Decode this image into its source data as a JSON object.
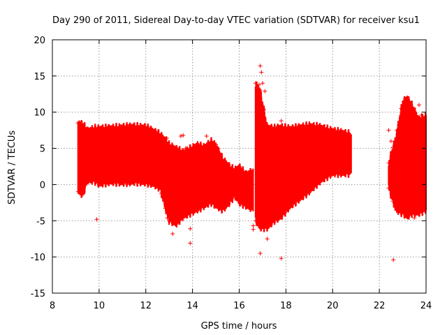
{
  "chart_data": {
    "type": "scatter",
    "title": "Day 290 of 2011, Sidereal Day-to-day VTEC variation (SDTVAR) for receiver ksu1",
    "xlabel": "GPS time / hours",
    "ylabel": "SDTVAR / TECUs",
    "xlim": [
      8,
      24
    ],
    "ylim": [
      -15,
      20
    ],
    "xticks": [
      "8",
      "10",
      "12",
      "14",
      "16",
      "18",
      "20",
      "22",
      "24"
    ],
    "yticks": [
      "-15",
      "-10",
      "-5",
      "0",
      "5",
      "10",
      "15",
      "20"
    ],
    "grid": true,
    "marker": "+",
    "color": "#ff0000",
    "series": [
      {
        "name": "SDTVAR",
        "segments": [
          {
            "x": [
              9.1,
              9.3,
              9.5,
              9.8,
              10.0,
              10.5,
              11.0,
              11.5,
              12.0,
              12.3
            ],
            "top": [
              8.5,
              8.4,
              7.5,
              7.8,
              7.8,
              7.9,
              8.0,
              8.1,
              8.0,
              7.5
            ],
            "bottom": [
              -1.0,
              -1.5,
              0.5,
              0.5,
              0.0,
              0.3,
              0.2,
              0.3,
              0.2,
              0.0
            ]
          },
          {
            "x": [
              12.3,
              12.6,
              12.9,
              13.0,
              13.3,
              13.6,
              13.9,
              14.2,
              14.5,
              14.8,
              15.0
            ],
            "top": [
              7.5,
              7.0,
              6.0,
              5.5,
              5.0,
              4.5,
              5.0,
              5.5,
              5.2,
              6.0,
              5.5
            ],
            "bottom": [
              0.0,
              -0.5,
              -4.0,
              -5.0,
              -5.5,
              -4.5,
              -4.0,
              -3.5,
              -3.0,
              -2.5,
              -3.0
            ]
          },
          {
            "x": [
              15.0,
              15.3,
              15.6,
              15.8,
              16.0,
              16.3,
              16.6
            ],
            "top": [
              5.5,
              3.5,
              2.5,
              2.0,
              2.5,
              1.5,
              2.0
            ],
            "bottom": [
              -3.0,
              -3.5,
              -2.5,
              -1.5,
              -2.5,
              -3.0,
              -3.5
            ]
          },
          {
            "x": [
              16.7,
              16.9,
              17.2,
              17.5,
              17.8,
              18.2,
              18.6,
              19.0,
              19.5,
              20.0,
              20.5,
              20.8
            ],
            "top": [
              14.0,
              13.0,
              8.0,
              7.8,
              8.0,
              7.8,
              8.0,
              8.2,
              8.0,
              7.5,
              7.2,
              7.0
            ],
            "bottom": [
              -5.0,
              -6.0,
              -6.0,
              -5.0,
              -4.5,
              -3.0,
              -2.0,
              -1.0,
              0.5,
              1.5,
              1.5,
              1.5
            ]
          },
          {
            "x": [
              22.4,
              22.7,
              23.0,
              23.2,
              23.4,
              23.7,
              24.0
            ],
            "top": [
              3.0,
              6.5,
              11.5,
              12.0,
              11.0,
              9.0,
              9.5
            ],
            "bottom": [
              -0.5,
              -3.5,
              -4.0,
              -4.5,
              -4.0,
              -4.0,
              -3.5
            ]
          }
        ],
        "outliers": [
          {
            "x": 9.9,
            "y": -4.8
          },
          {
            "x": 9.15,
            "y": 8.6
          },
          {
            "x": 12.92,
            "y": -4.6
          },
          {
            "x": 13.15,
            "y": -6.8
          },
          {
            "x": 13.5,
            "y": 6.7
          },
          {
            "x": 13.9,
            "y": -6.1
          },
          {
            "x": 13.9,
            "y": -8.1
          },
          {
            "x": 13.6,
            "y": 6.8
          },
          {
            "x": 13.7,
            "y": 5.0
          },
          {
            "x": 12.9,
            "y": 6.4
          },
          {
            "x": 14.6,
            "y": 6.7
          },
          {
            "x": 16.9,
            "y": 16.4
          },
          {
            "x": 16.95,
            "y": 15.5
          },
          {
            "x": 16.85,
            "y": 13.8
          },
          {
            "x": 17.0,
            "y": 14.0
          },
          {
            "x": 17.1,
            "y": 12.9
          },
          {
            "x": 16.6,
            "y": -5.7
          },
          {
            "x": 16.6,
            "y": -6.2
          },
          {
            "x": 16.9,
            "y": -9.5
          },
          {
            "x": 17.2,
            "y": -7.5
          },
          {
            "x": 17.8,
            "y": -10.2
          },
          {
            "x": 17.8,
            "y": 8.8
          },
          {
            "x": 15.6,
            "y": 2.2
          },
          {
            "x": 16.5,
            "y": -1.8
          },
          {
            "x": 22.6,
            "y": -10.4
          },
          {
            "x": 22.4,
            "y": 7.5
          },
          {
            "x": 22.5,
            "y": 6.0
          },
          {
            "x": 23.7,
            "y": 11.0
          },
          {
            "x": 23.8,
            "y": 9.6
          },
          {
            "x": 23.5,
            "y": -4.6
          }
        ]
      }
    ]
  }
}
